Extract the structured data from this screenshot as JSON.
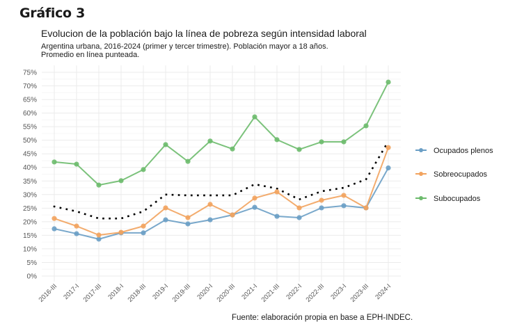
{
  "figure_label": "Gráfico 3",
  "caption": "Fuente: elaboración propia en base a EPH-INDEC.",
  "chart_data": {
    "type": "line",
    "title": "Evolucion de la población bajo la línea de pobreza según intensidad laboral",
    "subtitle_lines": [
      "Argentina urbana, 2016-2024 (primer y tercer trimestre). Población mayor a 18 años.",
      "Promedio en línea punteada."
    ],
    "xlabel": "",
    "ylabel": "",
    "ylim": [
      0,
      75
    ],
    "y_ticks": [
      0,
      5,
      10,
      15,
      20,
      25,
      30,
      35,
      40,
      45,
      50,
      55,
      60,
      65,
      70,
      75
    ],
    "y_tick_format": "%",
    "grid": true,
    "legend_position": "right",
    "categories": [
      "2016-III",
      "2017-I",
      "2017-III",
      "2018-I",
      "2018-III",
      "2019-I",
      "2019-III",
      "2020-I",
      "2020-III",
      "2021-I",
      "2021-III",
      "2022-I",
      "2022-III",
      "2023-I",
      "2023-III",
      "2024-I"
    ],
    "series": [
      {
        "name": "Ocupados plenos",
        "color": "#6a9ec5",
        "values": [
          17.4,
          15.6,
          13.6,
          15.9,
          15.9,
          20.7,
          19.2,
          20.7,
          22.5,
          25.3,
          22.0,
          21.5,
          25.1,
          25.9,
          25.1,
          39.8
        ]
      },
      {
        "name": "Sobreocupados",
        "color": "#f2a35e",
        "values": [
          21.2,
          18.4,
          15.1,
          16.1,
          18.4,
          25.1,
          21.5,
          26.4,
          22.5,
          28.7,
          31.0,
          25.1,
          27.9,
          29.7,
          25.1,
          47.3
        ]
      },
      {
        "name": "Subocupados",
        "color": "#6dbb6d",
        "values": [
          42.0,
          41.2,
          33.5,
          35.1,
          39.2,
          48.4,
          42.2,
          49.7,
          46.8,
          58.6,
          50.2,
          46.6,
          49.4,
          49.4,
          55.3,
          71.4
        ]
      }
    ],
    "average": {
      "name": "Promedio",
      "style": "dotted",
      "color": "#000000",
      "values": [
        25.6,
        23.8,
        21.2,
        21.2,
        23.8,
        30.0,
        29.7,
        29.7,
        29.7,
        33.8,
        32.2,
        28.2,
        31.2,
        32.5,
        35.6,
        49.6
      ]
    }
  }
}
